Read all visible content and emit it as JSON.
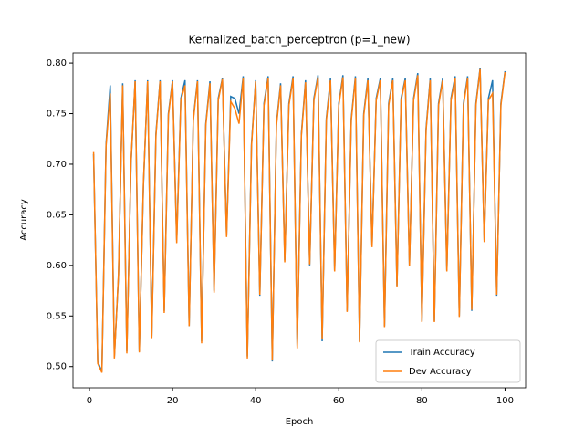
{
  "chart_data": {
    "type": "line",
    "title": "Kernalized_batch_perceptron (p=1_new)",
    "x_label": "Epoch",
    "y_label": "Accuracy",
    "x": [
      1,
      2,
      3,
      4,
      5,
      6,
      7,
      8,
      9,
      10,
      11,
      12,
      13,
      14,
      15,
      16,
      17,
      18,
      19,
      20,
      21,
      22,
      23,
      24,
      25,
      26,
      27,
      28,
      29,
      30,
      31,
      32,
      33,
      34,
      35,
      36,
      37,
      38,
      39,
      40,
      41,
      42,
      43,
      44,
      45,
      46,
      47,
      48,
      49,
      50,
      51,
      52,
      53,
      54,
      55,
      56,
      57,
      58,
      59,
      60,
      61,
      62,
      63,
      64,
      65,
      66,
      67,
      68,
      69,
      70,
      71,
      72,
      73,
      74,
      75,
      76,
      77,
      78,
      79,
      80,
      81,
      82,
      83,
      84,
      85,
      86,
      87,
      88,
      89,
      90,
      91,
      92,
      93,
      94,
      95,
      96,
      97,
      98,
      99,
      100
    ],
    "series": [
      {
        "name": "Train Accuracy",
        "color": "#1f77b4",
        "values": [
          0.71,
          0.505,
          0.495,
          0.72,
          0.778,
          0.51,
          0.59,
          0.78,
          0.515,
          0.7,
          0.783,
          0.515,
          0.68,
          0.783,
          0.53,
          0.73,
          0.783,
          0.555,
          0.75,
          0.783,
          0.625,
          0.765,
          0.783,
          0.54,
          0.745,
          0.783,
          0.525,
          0.74,
          0.782,
          0.575,
          0.765,
          0.785,
          0.63,
          0.767,
          0.765,
          0.75,
          0.787,
          0.51,
          0.72,
          0.783,
          0.57,
          0.76,
          0.787,
          0.505,
          0.74,
          0.78,
          0.605,
          0.76,
          0.787,
          0.52,
          0.73,
          0.783,
          0.6,
          0.765,
          0.788,
          0.525,
          0.745,
          0.785,
          0.595,
          0.76,
          0.788,
          0.555,
          0.745,
          0.787,
          0.525,
          0.75,
          0.785,
          0.62,
          0.765,
          0.785,
          0.54,
          0.76,
          0.785,
          0.58,
          0.765,
          0.785,
          0.6,
          0.765,
          0.79,
          0.545,
          0.735,
          0.785,
          0.545,
          0.76,
          0.785,
          0.595,
          0.765,
          0.787,
          0.55,
          0.76,
          0.787,
          0.555,
          0.76,
          0.795,
          0.625,
          0.765,
          0.783,
          0.57,
          0.76,
          0.792
        ]
      },
      {
        "name": "Dev Accuracy",
        "color": "#ff7f0e",
        "values": [
          0.712,
          0.503,
          0.494,
          0.718,
          0.77,
          0.508,
          0.592,
          0.778,
          0.513,
          0.702,
          0.782,
          0.514,
          0.682,
          0.782,
          0.528,
          0.728,
          0.782,
          0.553,
          0.748,
          0.782,
          0.622,
          0.763,
          0.778,
          0.54,
          0.743,
          0.782,
          0.523,
          0.738,
          0.78,
          0.573,
          0.763,
          0.784,
          0.628,
          0.762,
          0.755,
          0.74,
          0.785,
          0.508,
          0.718,
          0.782,
          0.571,
          0.758,
          0.785,
          0.506,
          0.738,
          0.778,
          0.603,
          0.758,
          0.785,
          0.518,
          0.728,
          0.781,
          0.601,
          0.763,
          0.786,
          0.527,
          0.743,
          0.783,
          0.594,
          0.758,
          0.786,
          0.554,
          0.743,
          0.785,
          0.524,
          0.748,
          0.783,
          0.618,
          0.763,
          0.783,
          0.539,
          0.758,
          0.783,
          0.579,
          0.763,
          0.783,
          0.599,
          0.763,
          0.788,
          0.544,
          0.733,
          0.783,
          0.544,
          0.758,
          0.783,
          0.594,
          0.763,
          0.785,
          0.549,
          0.758,
          0.785,
          0.556,
          0.758,
          0.794,
          0.623,
          0.763,
          0.77,
          0.571,
          0.758,
          0.791
        ]
      }
    ],
    "xlim": [
      -3.95,
      104.95
    ],
    "xticks": [
      0,
      20,
      40,
      60,
      80,
      100
    ],
    "ylim": [
      0.479,
      0.81
    ],
    "yticks": [
      {
        "value": 0.5,
        "label": "0.50"
      },
      {
        "value": 0.55,
        "label": "0.55"
      },
      {
        "value": 0.6,
        "label": "0.60"
      },
      {
        "value": 0.65,
        "label": "0.65"
      },
      {
        "value": 0.7,
        "label": "0.70"
      },
      {
        "value": 0.75,
        "label": "0.75"
      },
      {
        "value": 0.8,
        "label": "0.80"
      }
    ],
    "legend": "lower right"
  }
}
